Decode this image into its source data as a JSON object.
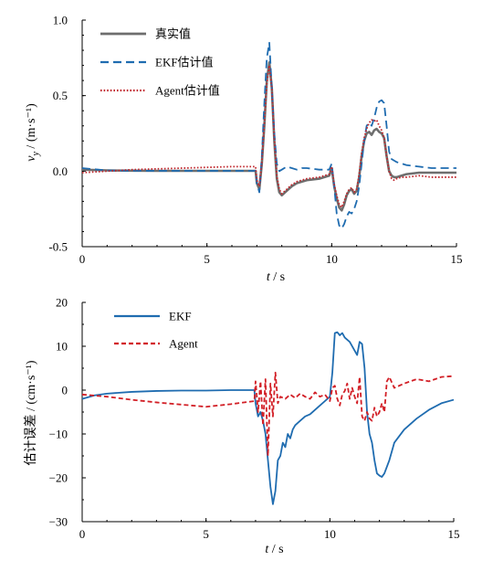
{
  "chart_data": [
    {
      "type": "line",
      "xlabel": "t / s",
      "ylabel": "v_y / (m·s⁻¹)",
      "xlim": [
        0,
        15
      ],
      "ylim": [
        -0.5,
        1.0
      ],
      "xticks": [
        "0",
        "5",
        "10",
        "15"
      ],
      "yticks": [
        "1.0",
        "0.5",
        "0.0",
        "-0.5"
      ],
      "grid": false,
      "legend": "top-left",
      "series": [
        {
          "name": "真实值",
          "color": "#6e6e6e",
          "dash": "solid",
          "x": [
            0,
            1,
            2,
            3,
            4,
            5,
            6,
            6.95,
            7.0,
            7.1,
            7.2,
            7.3,
            7.4,
            7.5,
            7.6,
            7.7,
            7.8,
            7.9,
            8.0,
            8.2,
            8.4,
            8.6,
            8.8,
            9.0,
            9.5,
            9.9,
            10.0,
            10.1,
            10.2,
            10.3,
            10.4,
            10.5,
            10.6,
            10.7,
            10.8,
            10.9,
            11.0,
            11.1,
            11.2,
            11.3,
            11.4,
            11.5,
            11.6,
            11.7,
            11.8,
            11.9,
            12.0,
            12.1,
            12.2,
            12.3,
            12.4,
            12.5,
            12.6,
            12.8,
            13.0,
            13.5,
            14.0,
            14.5,
            15.0
          ],
          "y": [
            0.01,
            0.005,
            0.003,
            0.002,
            0.002,
            0.002,
            0.002,
            0.002,
            -0.08,
            -0.12,
            0.05,
            0.3,
            0.6,
            0.72,
            0.55,
            0.2,
            -0.05,
            -0.14,
            -0.16,
            -0.13,
            -0.1,
            -0.08,
            -0.07,
            -0.06,
            -0.05,
            -0.03,
            0.02,
            -0.1,
            -0.18,
            -0.24,
            -0.26,
            -0.22,
            -0.16,
            -0.13,
            -0.12,
            -0.15,
            -0.13,
            -0.04,
            0.1,
            0.2,
            0.25,
            0.26,
            0.24,
            0.27,
            0.28,
            0.26,
            0.25,
            0.22,
            0.1,
            0.0,
            -0.03,
            -0.04,
            -0.04,
            -0.03,
            -0.02,
            -0.01,
            -0.01,
            -0.01,
            -0.01
          ]
        },
        {
          "name": "EKF估计值",
          "color": "#1f6cb0",
          "dash": "long-dash",
          "x": [
            0,
            1,
            2,
            3,
            4,
            5,
            6,
            6.95,
            7.0,
            7.1,
            7.2,
            7.3,
            7.4,
            7.5,
            7.6,
            7.7,
            7.8,
            7.9,
            8.0,
            8.2,
            8.4,
            8.6,
            8.8,
            9.0,
            9.5,
            9.9,
            10.0,
            10.1,
            10.2,
            10.3,
            10.4,
            10.5,
            10.6,
            10.7,
            10.8,
            10.9,
            11.0,
            11.1,
            11.2,
            11.3,
            11.4,
            11.5,
            11.6,
            11.7,
            11.8,
            11.9,
            12.0,
            12.1,
            12.2,
            12.3,
            12.4,
            12.5,
            12.6,
            12.8,
            13.0,
            13.5,
            14.0,
            14.5,
            15.0
          ],
          "y": [
            0.02,
            0.005,
            0.003,
            0.002,
            0.002,
            0.002,
            0.002,
            0.002,
            -0.08,
            -0.14,
            0.1,
            0.45,
            0.75,
            0.85,
            0.55,
            0.25,
            0.05,
            0.0,
            0.01,
            0.03,
            0.02,
            0.01,
            0.02,
            0.02,
            0.01,
            0.01,
            0.05,
            -0.1,
            -0.28,
            -0.36,
            -0.38,
            -0.35,
            -0.3,
            -0.27,
            -0.28,
            -0.25,
            -0.2,
            -0.1,
            0.05,
            0.2,
            0.3,
            0.32,
            0.3,
            0.35,
            0.42,
            0.46,
            0.47,
            0.45,
            0.3,
            0.13,
            0.08,
            0.07,
            0.06,
            0.05,
            0.04,
            0.03,
            0.02,
            0.02,
            0.02
          ]
        },
        {
          "name": "Agent估计值",
          "color": "#c0282e",
          "dash": "dotted",
          "x": [
            0,
            1,
            2,
            3,
            4,
            5,
            6,
            6.95,
            7.0,
            7.1,
            7.2,
            7.3,
            7.4,
            7.5,
            7.6,
            7.7,
            7.8,
            7.9,
            8.0,
            8.2,
            8.4,
            8.6,
            8.8,
            9.0,
            9.5,
            9.9,
            10.0,
            10.1,
            10.2,
            10.3,
            10.4,
            10.5,
            10.6,
            10.7,
            10.8,
            10.9,
            11.0,
            11.1,
            11.2,
            11.3,
            11.4,
            11.5,
            11.6,
            11.7,
            11.8,
            11.9,
            12.0,
            12.1,
            12.2,
            12.3,
            12.4,
            12.5,
            12.6,
            12.8,
            13.0,
            13.5,
            14.0,
            14.5,
            15.0
          ],
          "y": [
            -0.01,
            0.0,
            0.01,
            0.015,
            0.02,
            0.025,
            0.03,
            0.03,
            -0.06,
            -0.1,
            0.06,
            0.32,
            0.58,
            0.7,
            0.55,
            0.22,
            -0.03,
            -0.12,
            -0.15,
            -0.12,
            -0.09,
            -0.07,
            -0.06,
            -0.05,
            -0.04,
            -0.02,
            0.03,
            -0.09,
            -0.16,
            -0.22,
            -0.24,
            -0.2,
            -0.15,
            -0.12,
            -0.11,
            -0.14,
            -0.12,
            -0.02,
            0.12,
            0.22,
            0.28,
            0.32,
            0.34,
            0.33,
            0.34,
            0.3,
            0.27,
            0.22,
            0.1,
            0.0,
            -0.05,
            -0.06,
            -0.05,
            -0.04,
            -0.04,
            -0.03,
            -0.04,
            -0.04,
            -0.04
          ]
        }
      ]
    },
    {
      "type": "line",
      "xlabel": "t / s",
      "ylabel": "估计误差 / (cm·s⁻¹)",
      "xlim": [
        0,
        15
      ],
      "ylim": [
        -30,
        20
      ],
      "xticks": [
        "0",
        "5",
        "10",
        "15"
      ],
      "yticks": [
        "20",
        "10",
        "0",
        "−10",
        "−20",
        "−30"
      ],
      "grid": false,
      "legend": "top-left",
      "series": [
        {
          "name": "EKF",
          "color": "#1f6cb0",
          "dash": "solid",
          "x": [
            0,
            0.5,
            1,
            2,
            3,
            4,
            5,
            6,
            6.95,
            7.0,
            7.1,
            7.2,
            7.3,
            7.4,
            7.5,
            7.6,
            7.7,
            7.8,
            7.9,
            8.0,
            8.1,
            8.2,
            8.3,
            8.4,
            8.5,
            8.6,
            8.8,
            9.0,
            9.2,
            9.5,
            9.8,
            10.0,
            10.1,
            10.2,
            10.3,
            10.4,
            10.5,
            10.6,
            10.8,
            11.0,
            11.1,
            11.2,
            11.3,
            11.4,
            11.5,
            11.6,
            11.7,
            11.8,
            11.9,
            12.0,
            12.1,
            12.2,
            12.4,
            12.6,
            13.0,
            13.5,
            14.0,
            14.5,
            15.0
          ],
          "y": [
            -2.0,
            -1.2,
            -0.8,
            -0.4,
            -0.2,
            -0.1,
            -0.1,
            0.0,
            0.0,
            -3.0,
            -6.0,
            -5.0,
            -7.0,
            -10.0,
            -16.0,
            -22.0,
            -26.0,
            -23.0,
            -16.0,
            -15.0,
            -12.0,
            -13.0,
            -10.0,
            -11.0,
            -9.0,
            -8.0,
            -7.0,
            -6.0,
            -5.5,
            -4.0,
            -2.5,
            -1.5,
            4.0,
            13.0,
            13.2,
            12.5,
            13.0,
            12.0,
            11.0,
            9.0,
            8.0,
            11.0,
            10.5,
            5.0,
            -5.0,
            -10.0,
            -12.0,
            -16.0,
            -19.0,
            -19.5,
            -19.8,
            -19.0,
            -16.0,
            -12.0,
            -9.0,
            -6.5,
            -4.5,
            -3.0,
            -2.2
          ]
        },
        {
          "name": "Agent",
          "color": "#d21f26",
          "dash": "dashed",
          "x": [
            0,
            1,
            2,
            3,
            4,
            5,
            6,
            6.95,
            7.0,
            7.1,
            7.2,
            7.3,
            7.4,
            7.5,
            7.6,
            7.7,
            7.8,
            7.9,
            8.0,
            8.2,
            8.4,
            8.6,
            8.8,
            9.0,
            9.2,
            9.4,
            9.6,
            9.8,
            10.0,
            10.1,
            10.2,
            10.3,
            10.4,
            10.5,
            10.6,
            10.7,
            10.8,
            10.9,
            11.0,
            11.1,
            11.2,
            11.3,
            11.4,
            11.5,
            11.6,
            11.7,
            11.8,
            11.9,
            12.0,
            12.1,
            12.2,
            12.3,
            12.4,
            12.6,
            13.0,
            13.5,
            14.0,
            14.5,
            15.0
          ],
          "y": [
            -1.0,
            -1.5,
            -2.2,
            -2.8,
            -3.3,
            -3.8,
            -3.2,
            -2.5,
            2.0,
            -5.0,
            2.0,
            -8.0,
            2.5,
            -15.0,
            1.5,
            -6.0,
            4.0,
            -3.0,
            -1.5,
            -2.0,
            -1.0,
            -1.8,
            -0.8,
            -1.5,
            -2.0,
            -0.5,
            -1.5,
            -1.0,
            -2.5,
            0.5,
            1.0,
            -2.0,
            -3.5,
            -1.0,
            -0.2,
            1.5,
            -2.0,
            0.5,
            -1.5,
            -3.0,
            3.0,
            -6.0,
            -7.0,
            -5.0,
            -6.5,
            -7.0,
            -4.0,
            -6.0,
            -5.0,
            -3.0,
            -5.0,
            2.0,
            3.0,
            0.5,
            1.5,
            2.5,
            2.0,
            3.0,
            3.2
          ]
        }
      ]
    }
  ]
}
